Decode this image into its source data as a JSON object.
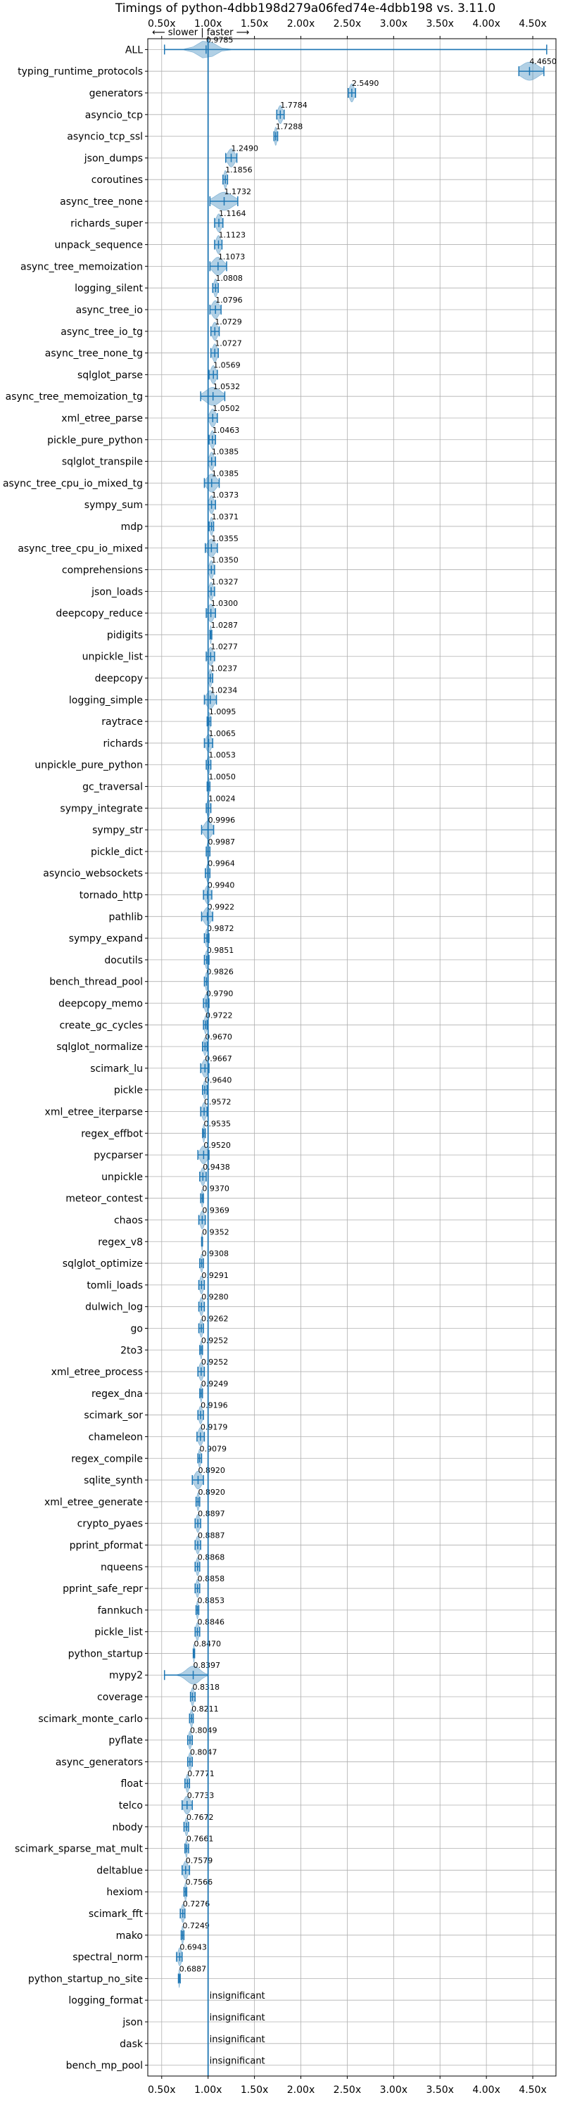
{
  "chart_data": {
    "type": "violin",
    "title": "Timings of python-4dbb198d279a06fed74e-4dbb198 vs. 3.11.0",
    "direction_label": "⟵ slower | faster ⟶",
    "xlim": [
      0.35,
      4.75
    ],
    "xticks": [
      0.5,
      1.0,
      1.5,
      2.0,
      2.5,
      3.0,
      3.5,
      4.0,
      4.5
    ],
    "xtick_labels": [
      "0.50x",
      "1.00x",
      "1.50x",
      "2.00x",
      "2.50x",
      "3.00x",
      "3.50x",
      "4.00x",
      "4.50x"
    ],
    "reference_x": 1.0,
    "grid": true,
    "color": "#1f77b4",
    "insignificant_label": "insignificant",
    "benchmarks": [
      {
        "name": "ALL",
        "value": 0.9785,
        "label": "0.9785",
        "min": 0.53,
        "max": 4.65,
        "spread": 0.15
      },
      {
        "name": "typing_runtime_protocols",
        "value": 4.465,
        "label": "4.4650",
        "min": 4.35,
        "max": 4.62,
        "spread": 0.15
      },
      {
        "name": "generators",
        "value": 2.549,
        "label": "2.5490",
        "min": 2.51,
        "max": 2.59,
        "spread": 0.04
      },
      {
        "name": "asyncio_tcp",
        "value": 1.7784,
        "label": "1.7784",
        "min": 1.74,
        "max": 1.82,
        "spread": 0.04
      },
      {
        "name": "asyncio_tcp_ssl",
        "value": 1.7288,
        "label": "1.7288",
        "min": 1.71,
        "max": 1.75,
        "spread": 0.02
      },
      {
        "name": "json_dumps",
        "value": 1.249,
        "label": "1.2490",
        "min": 1.19,
        "max": 1.31,
        "spread": 0.06
      },
      {
        "name": "coroutines",
        "value": 1.1856,
        "label": "1.1856",
        "min": 1.16,
        "max": 1.21,
        "spread": 0.025
      },
      {
        "name": "async_tree_none",
        "value": 1.1732,
        "label": "1.1732",
        "min": 1.02,
        "max": 1.32,
        "spread": 0.15
      },
      {
        "name": "richards_super",
        "value": 1.1164,
        "label": "1.1164",
        "min": 1.07,
        "max": 1.16,
        "spread": 0.045
      },
      {
        "name": "unpack_sequence",
        "value": 1.1123,
        "label": "1.1123",
        "min": 1.07,
        "max": 1.15,
        "spread": 0.04
      },
      {
        "name": "async_tree_memoization",
        "value": 1.1073,
        "label": "1.1073",
        "min": 1.02,
        "max": 1.2,
        "spread": 0.09
      },
      {
        "name": "logging_silent",
        "value": 1.0808,
        "label": "1.0808",
        "min": 1.05,
        "max": 1.11,
        "spread": 0.03
      },
      {
        "name": "async_tree_io",
        "value": 1.0796,
        "label": "1.0796",
        "min": 1.02,
        "max": 1.14,
        "spread": 0.06
      },
      {
        "name": "async_tree_io_tg",
        "value": 1.0729,
        "label": "1.0729",
        "min": 1.03,
        "max": 1.12,
        "spread": 0.045
      },
      {
        "name": "async_tree_none_tg",
        "value": 1.0727,
        "label": "1.0727",
        "min": 1.03,
        "max": 1.11,
        "spread": 0.04
      },
      {
        "name": "sqlglot_parse",
        "value": 1.0569,
        "label": "1.0569",
        "min": 1.01,
        "max": 1.1,
        "spread": 0.045
      },
      {
        "name": "async_tree_memoization_tg",
        "value": 1.0532,
        "label": "1.0532",
        "min": 0.92,
        "max": 1.18,
        "spread": 0.13
      },
      {
        "name": "xml_etree_parse",
        "value": 1.0502,
        "label": "1.0502",
        "min": 1.0,
        "max": 1.1,
        "spread": 0.05
      },
      {
        "name": "pickle_pure_python",
        "value": 1.0463,
        "label": "1.0463",
        "min": 1.01,
        "max": 1.08,
        "spread": 0.035
      },
      {
        "name": "sqlglot_transpile",
        "value": 1.0385,
        "label": "1.0385",
        "min": 1.0,
        "max": 1.08,
        "spread": 0.04
      },
      {
        "name": "async_tree_cpu_io_mixed_tg",
        "value": 1.0385,
        "label": "1.0385",
        "min": 0.96,
        "max": 1.12,
        "spread": 0.08
      },
      {
        "name": "sympy_sum",
        "value": 1.0373,
        "label": "1.0373",
        "min": 1.0,
        "max": 1.08,
        "spread": 0.04
      },
      {
        "name": "mdp",
        "value": 1.0371,
        "label": "1.0371",
        "min": 1.01,
        "max": 1.06,
        "spread": 0.025
      },
      {
        "name": "async_tree_cpu_io_mixed",
        "value": 1.0355,
        "label": "1.0355",
        "min": 0.97,
        "max": 1.1,
        "spread": 0.065
      },
      {
        "name": "comprehensions",
        "value": 1.035,
        "label": "1.0350",
        "min": 1.0,
        "max": 1.07,
        "spread": 0.035
      },
      {
        "name": "json_loads",
        "value": 1.0327,
        "label": "1.0327",
        "min": 1.0,
        "max": 1.07,
        "spread": 0.035
      },
      {
        "name": "deepcopy_reduce",
        "value": 1.03,
        "label": "1.0300",
        "min": 0.98,
        "max": 1.08,
        "spread": 0.05
      },
      {
        "name": "pidigits",
        "value": 1.0287,
        "label": "1.0287",
        "min": 1.02,
        "max": 1.04,
        "spread": 0.01
      },
      {
        "name": "unpickle_list",
        "value": 1.0277,
        "label": "1.0277",
        "min": 0.98,
        "max": 1.07,
        "spread": 0.045
      },
      {
        "name": "deepcopy",
        "value": 1.0237,
        "label": "1.0237",
        "min": 1.0,
        "max": 1.05,
        "spread": 0.025
      },
      {
        "name": "logging_simple",
        "value": 1.0234,
        "label": "1.0234",
        "min": 0.96,
        "max": 1.09,
        "spread": 0.065
      },
      {
        "name": "raytrace",
        "value": 1.0095,
        "label": "1.0095",
        "min": 0.99,
        "max": 1.03,
        "spread": 0.02
      },
      {
        "name": "richards",
        "value": 1.0065,
        "label": "1.0065",
        "min": 0.96,
        "max": 1.05,
        "spread": 0.045
      },
      {
        "name": "unpickle_pure_python",
        "value": 1.0053,
        "label": "1.0053",
        "min": 0.98,
        "max": 1.03,
        "spread": 0.025
      },
      {
        "name": "gc_traversal",
        "value": 1.005,
        "label": "1.0050",
        "min": 0.99,
        "max": 1.02,
        "spread": 0.015
      },
      {
        "name": "sympy_integrate",
        "value": 1.0024,
        "label": "1.0024",
        "min": 0.98,
        "max": 1.03,
        "spread": 0.025
      },
      {
        "name": "sympy_str",
        "value": 0.9996,
        "label": "0.9996",
        "min": 0.93,
        "max": 1.06,
        "spread": 0.065
      },
      {
        "name": "pickle_dict",
        "value": 0.9987,
        "label": "0.9987",
        "min": 0.98,
        "max": 1.02,
        "spread": 0.02
      },
      {
        "name": "asyncio_websockets",
        "value": 0.9964,
        "label": "0.9964",
        "min": 0.97,
        "max": 1.02,
        "spread": 0.025
      },
      {
        "name": "tornado_http",
        "value": 0.994,
        "label": "0.9940",
        "min": 0.95,
        "max": 1.04,
        "spread": 0.045
      },
      {
        "name": "pathlib",
        "value": 0.9922,
        "label": "0.9922",
        "min": 0.93,
        "max": 1.05,
        "spread": 0.06
      },
      {
        "name": "sympy_expand",
        "value": 0.9872,
        "label": "0.9872",
        "min": 0.96,
        "max": 1.01,
        "spread": 0.025
      },
      {
        "name": "docutils",
        "value": 0.9851,
        "label": "0.9851",
        "min": 0.96,
        "max": 1.01,
        "spread": 0.025
      },
      {
        "name": "bench_thread_pool",
        "value": 0.9826,
        "label": "0.9826",
        "min": 0.96,
        "max": 1.0,
        "spread": 0.02
      },
      {
        "name": "deepcopy_memo",
        "value": 0.979,
        "label": "0.9790",
        "min": 0.95,
        "max": 1.01,
        "spread": 0.03
      },
      {
        "name": "create_gc_cycles",
        "value": 0.9722,
        "label": "0.9722",
        "min": 0.95,
        "max": 0.99,
        "spread": 0.02
      },
      {
        "name": "sqlglot_normalize",
        "value": 0.967,
        "label": "0.9670",
        "min": 0.94,
        "max": 0.99,
        "spread": 0.025
      },
      {
        "name": "scimark_lu",
        "value": 0.9667,
        "label": "0.9667",
        "min": 0.92,
        "max": 1.01,
        "spread": 0.045
      },
      {
        "name": "pickle",
        "value": 0.964,
        "label": "0.9640",
        "min": 0.94,
        "max": 0.99,
        "spread": 0.025
      },
      {
        "name": "xml_etree_iterparse",
        "value": 0.9572,
        "label": "0.9572",
        "min": 0.92,
        "max": 0.99,
        "spread": 0.035
      },
      {
        "name": "regex_effbot",
        "value": 0.9535,
        "label": "0.9535",
        "min": 0.94,
        "max": 0.97,
        "spread": 0.015
      },
      {
        "name": "pycparser",
        "value": 0.952,
        "label": "0.9520",
        "min": 0.89,
        "max": 1.01,
        "spread": 0.06
      },
      {
        "name": "unpickle",
        "value": 0.9438,
        "label": "0.9438",
        "min": 0.91,
        "max": 0.98,
        "spread": 0.035
      },
      {
        "name": "meteor_contest",
        "value": 0.937,
        "label": "0.9370",
        "min": 0.92,
        "max": 0.95,
        "spread": 0.015
      },
      {
        "name": "chaos",
        "value": 0.9369,
        "label": "0.9369",
        "min": 0.9,
        "max": 0.97,
        "spread": 0.035
      },
      {
        "name": "regex_v8",
        "value": 0.9352,
        "label": "0.9352",
        "min": 0.93,
        "max": 0.94,
        "spread": 0.005
      },
      {
        "name": "sqlglot_optimize",
        "value": 0.9308,
        "label": "0.9308",
        "min": 0.91,
        "max": 0.95,
        "spread": 0.02
      },
      {
        "name": "tomli_loads",
        "value": 0.9291,
        "label": "0.9291",
        "min": 0.9,
        "max": 0.96,
        "spread": 0.03
      },
      {
        "name": "dulwich_log",
        "value": 0.928,
        "label": "0.9280",
        "min": 0.9,
        "max": 0.96,
        "spread": 0.03
      },
      {
        "name": "go",
        "value": 0.9262,
        "label": "0.9262",
        "min": 0.9,
        "max": 0.95,
        "spread": 0.025
      },
      {
        "name": "2to3",
        "value": 0.9252,
        "label": "0.9252",
        "min": 0.91,
        "max": 0.94,
        "spread": 0.015
      },
      {
        "name": "xml_etree_process",
        "value": 0.9252,
        "label": "0.9252",
        "min": 0.89,
        "max": 0.96,
        "spread": 0.035
      },
      {
        "name": "regex_dna",
        "value": 0.9249,
        "label": "0.9249",
        "min": 0.91,
        "max": 0.94,
        "spread": 0.015
      },
      {
        "name": "scimark_sor",
        "value": 0.9196,
        "label": "0.9196",
        "min": 0.89,
        "max": 0.95,
        "spread": 0.03
      },
      {
        "name": "chameleon",
        "value": 0.9179,
        "label": "0.9179",
        "min": 0.88,
        "max": 0.96,
        "spread": 0.04
      },
      {
        "name": "regex_compile",
        "value": 0.9079,
        "label": "0.9079",
        "min": 0.89,
        "max": 0.93,
        "spread": 0.02
      },
      {
        "name": "sqlite_synth",
        "value": 0.892,
        "label": "0.8920",
        "min": 0.83,
        "max": 0.95,
        "spread": 0.06
      },
      {
        "name": "xml_etree_generate",
        "value": 0.892,
        "label": "0.8920",
        "min": 0.87,
        "max": 0.91,
        "spread": 0.02
      },
      {
        "name": "crypto_pyaes",
        "value": 0.8897,
        "label": "0.8897",
        "min": 0.86,
        "max": 0.92,
        "spread": 0.03
      },
      {
        "name": "pprint_pformat",
        "value": 0.8887,
        "label": "0.8887",
        "min": 0.86,
        "max": 0.92,
        "spread": 0.03
      },
      {
        "name": "nqueens",
        "value": 0.8868,
        "label": "0.8868",
        "min": 0.86,
        "max": 0.91,
        "spread": 0.025
      },
      {
        "name": "pprint_safe_repr",
        "value": 0.8858,
        "label": "0.8858",
        "min": 0.86,
        "max": 0.91,
        "spread": 0.025
      },
      {
        "name": "fannkuch",
        "value": 0.8853,
        "label": "0.8853",
        "min": 0.87,
        "max": 0.9,
        "spread": 0.015
      },
      {
        "name": "pickle_list",
        "value": 0.8846,
        "label": "0.8846",
        "min": 0.86,
        "max": 0.91,
        "spread": 0.025
      },
      {
        "name": "python_startup",
        "value": 0.847,
        "label": "0.8470",
        "min": 0.84,
        "max": 0.855,
        "spread": 0.008
      },
      {
        "name": "mypy2",
        "value": 0.8397,
        "label": "0.8397",
        "min": 0.53,
        "max": 1.0,
        "spread": 0.12
      },
      {
        "name": "coverage",
        "value": 0.8318,
        "label": "0.8318",
        "min": 0.81,
        "max": 0.86,
        "spread": 0.025
      },
      {
        "name": "scimark_monte_carlo",
        "value": 0.8211,
        "label": "0.8211",
        "min": 0.8,
        "max": 0.84,
        "spread": 0.02
      },
      {
        "name": "pyflate",
        "value": 0.8049,
        "label": "0.8049",
        "min": 0.78,
        "max": 0.83,
        "spread": 0.025
      },
      {
        "name": "async_generators",
        "value": 0.8047,
        "label": "0.8047",
        "min": 0.78,
        "max": 0.83,
        "spread": 0.025
      },
      {
        "name": "float",
        "value": 0.7771,
        "label": "0.7771",
        "min": 0.75,
        "max": 0.8,
        "spread": 0.025
      },
      {
        "name": "telco",
        "value": 0.7733,
        "label": "0.7733",
        "min": 0.72,
        "max": 0.83,
        "spread": 0.055
      },
      {
        "name": "nbody",
        "value": 0.7672,
        "label": "0.7672",
        "min": 0.74,
        "max": 0.79,
        "spread": 0.025
      },
      {
        "name": "scimark_sparse_mat_mult",
        "value": 0.7661,
        "label": "0.7661",
        "min": 0.75,
        "max": 0.79,
        "spread": 0.015
      },
      {
        "name": "deltablue",
        "value": 0.7579,
        "label": "0.7579",
        "min": 0.72,
        "max": 0.8,
        "spread": 0.04
      },
      {
        "name": "hexiom",
        "value": 0.7566,
        "label": "0.7566",
        "min": 0.74,
        "max": 0.77,
        "spread": 0.015
      },
      {
        "name": "scimark_fft",
        "value": 0.7276,
        "label": "0.7276",
        "min": 0.7,
        "max": 0.75,
        "spread": 0.025
      },
      {
        "name": "mako",
        "value": 0.7249,
        "label": "0.7249",
        "min": 0.71,
        "max": 0.74,
        "spread": 0.015
      },
      {
        "name": "spectral_norm",
        "value": 0.6943,
        "label": "0.6943",
        "min": 0.66,
        "max": 0.72,
        "spread": 0.03
      },
      {
        "name": "python_startup_no_site",
        "value": 0.6887,
        "label": "0.6887",
        "min": 0.68,
        "max": 0.7,
        "spread": 0.005
      },
      {
        "name": "logging_format",
        "value": null,
        "label": "insignificant"
      },
      {
        "name": "json",
        "value": null,
        "label": "insignificant"
      },
      {
        "name": "dask",
        "value": null,
        "label": "insignificant"
      },
      {
        "name": "bench_mp_pool",
        "value": null,
        "label": "insignificant"
      }
    ]
  }
}
